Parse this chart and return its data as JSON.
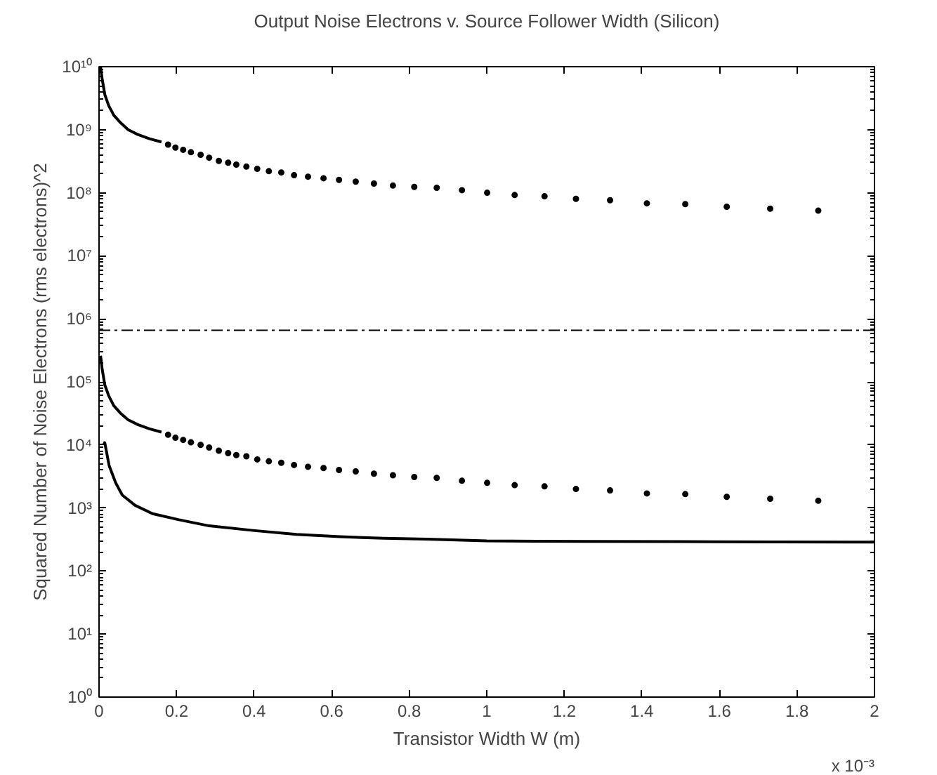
{
  "chart_data": {
    "type": "scatter",
    "title": "Output Noise Electrons v. Source Follower Width (Silicon)",
    "xlabel": "Transistor Width W (m)",
    "ylabel": "Squared Number of Noise Electrons (rms electrons)^2",
    "annotations": [
      "x 10⁻³"
    ],
    "log": "y",
    "grid": false,
    "marker": "circle",
    "xlim": [
      0,
      2
    ],
    "xticks": [
      0,
      0.2,
      0.4,
      0.6,
      0.8,
      1,
      1.2,
      1.4,
      1.6,
      1.8,
      2
    ],
    "ylim": [
      1,
      10000000000
    ],
    "yticks": [
      {
        "value": 1,
        "label": "10⁰"
      },
      {
        "value": 10,
        "label": "10¹"
      },
      {
        "value": 100,
        "label": "10²"
      },
      {
        "value": 1000,
        "label": "10³"
      },
      {
        "value": 10000,
        "label": "10⁴"
      },
      {
        "value": 100000,
        "label": "10⁵"
      },
      {
        "value": 1000000,
        "label": "10⁶"
      },
      {
        "value": 10000000,
        "label": "10⁷"
      },
      {
        "value": 100000000,
        "label": "10⁸"
      },
      {
        "value": 1000000000,
        "label": "10⁹"
      },
      {
        "value": 10000000000,
        "label": "10¹⁰"
      }
    ],
    "ref_lines": [
      {
        "axis": "y",
        "value": 660000,
        "color": "#000000",
        "line_style": "dashdot"
      }
    ],
    "series": [
      {
        "type": "line",
        "marker": "none",
        "color": "#000000",
        "x": [
          0.004,
          0.008,
          0.015,
          0.025,
          0.038,
          0.055,
          0.075,
          0.1,
          0.13,
          0.161
        ],
        "values": [
          9800000000,
          6400000000,
          3600000000,
          2400000000,
          1700000000,
          1300000000,
          1000000000,
          840000000,
          720000000,
          640000000
        ]
      },
      {
        "color": "#000000",
        "x": [
          0.178,
          0.197,
          0.217,
          0.237,
          0.262,
          0.284,
          0.309,
          0.333,
          0.354,
          0.38,
          0.408,
          0.438,
          0.47,
          0.503,
          0.539,
          0.579,
          0.619,
          0.662,
          0.709,
          0.758,
          0.813,
          0.871,
          0.936,
          1.001,
          1.072,
          1.149,
          1.23,
          1.318,
          1.413,
          1.512,
          1.619,
          1.731,
          1.855
        ],
        "values": [
          580000000,
          520000000,
          480000000,
          440000000,
          400000000,
          360000000,
          320000000,
          300000000,
          280000000,
          260000000,
          240000000,
          220000000,
          210000000,
          190000000,
          180000000,
          170000000,
          160000000,
          150000000,
          140000000,
          130000000,
          124000000,
          120000000,
          110000000,
          100000000,
          92000000,
          88000000,
          80000000,
          76000000,
          68000000,
          66000000,
          60000000,
          56000000,
          52000000
        ]
      },
      {
        "type": "line",
        "marker": "none",
        "color": "#000000",
        "x": [
          0.004,
          0.008,
          0.015,
          0.025,
          0.038,
          0.055,
          0.075,
          0.1,
          0.13,
          0.161
        ],
        "values": [
          260000,
          160000,
          89000,
          60000,
          42000,
          32000,
          25000,
          21000,
          18000,
          16000
        ]
      },
      {
        "color": "#000000",
        "x": [
          0.178,
          0.197,
          0.217,
          0.237,
          0.262,
          0.284,
          0.309,
          0.333,
          0.354,
          0.38,
          0.408,
          0.438,
          0.47,
          0.503,
          0.539,
          0.579,
          0.619,
          0.662,
          0.709,
          0.758,
          0.813,
          0.871,
          0.936,
          1.001,
          1.072,
          1.149,
          1.23,
          1.318,
          1.413,
          1.512,
          1.619,
          1.731,
          1.855
        ],
        "values": [
          14500,
          13000,
          12000,
          11000,
          10000,
          9100,
          8100,
          7400,
          6900,
          6600,
          5900,
          5500,
          5200,
          4800,
          4500,
          4300,
          4000,
          3800,
          3500,
          3300,
          3100,
          3000,
          2700,
          2500,
          2300,
          2200,
          2000,
          1900,
          1700,
          1660,
          1500,
          1400,
          1300
        ]
      },
      {
        "type": "line",
        "marker": "none",
        "color": "#000000",
        "x": [
          0.011,
          0.015,
          0.026,
          0.043,
          0.06,
          0.093,
          0.138,
          0.206,
          0.284,
          0.397,
          0.509,
          0.621,
          0.734,
          0.846,
          1.0,
          1.25,
          1.5,
          1.75,
          2.0
        ],
        "values": [
          11000,
          10700,
          4700,
          2500,
          1600,
          1100,
          810,
          650,
          520,
          440,
          380,
          350,
          330,
          320,
          300,
          295,
          292,
          290,
          288
        ]
      }
    ]
  }
}
